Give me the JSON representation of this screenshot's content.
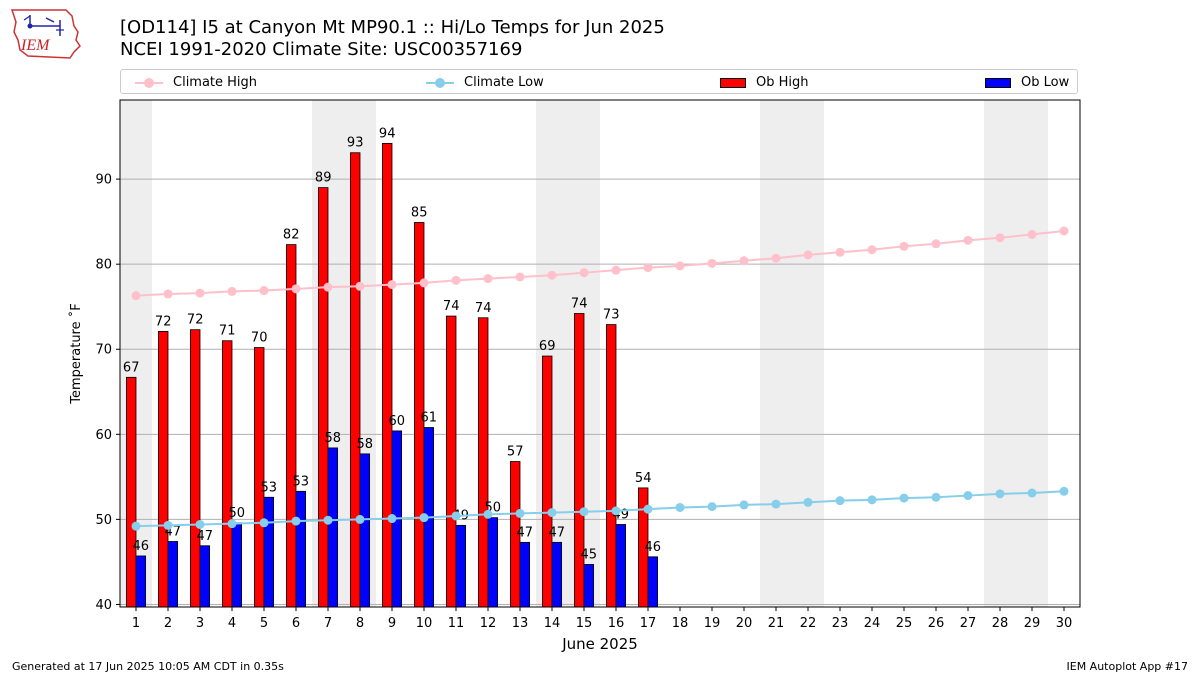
{
  "logo": {
    "text": "IEM"
  },
  "header": {
    "title_line1": "[OD114] I5 at Canyon Mt MP90.1  :: Hi/Lo Temps for Jun 2025",
    "title_line2": "NCEI 1991-2020 Climate Site: USC00357169"
  },
  "legend": {
    "climate_high": "Climate High",
    "climate_low": "Climate Low",
    "ob_high": "Ob High",
    "ob_low": "Ob Low"
  },
  "colors": {
    "climate_high": "#ffc0cb",
    "climate_low": "#87ceeb",
    "ob_high": "#ff0000",
    "ob_low": "#0000ff",
    "weekend_shade": "#eeeeee",
    "grid": "#b0b0b0"
  },
  "chart_data": {
    "type": "bar",
    "xlabel": "June 2025",
    "ylabel": "Temperature ˚F",
    "x": [
      1,
      2,
      3,
      4,
      5,
      6,
      7,
      8,
      9,
      10,
      11,
      12,
      13,
      14,
      15,
      16,
      17,
      18,
      19,
      20,
      21,
      22,
      23,
      24,
      25,
      26,
      27,
      28,
      29,
      30
    ],
    "xlim": [
      0.5,
      30.5
    ],
    "ylim": [
      39.7,
      99.3
    ],
    "yticks": [
      40,
      50,
      60,
      70,
      80,
      90
    ],
    "grid": "horizontal",
    "legend_position": "top",
    "shaded_days": [
      1,
      7,
      8,
      14,
      15,
      21,
      22,
      28,
      29
    ],
    "bars": [
      {
        "name": "Ob High",
        "values": [
          66.7,
          72.1,
          72.3,
          71.0,
          70.2,
          82.3,
          89.0,
          93.1,
          94.2,
          84.9,
          73.9,
          73.7,
          56.8,
          69.2,
          74.2,
          72.9,
          53.7
        ]
      },
      {
        "name": "Ob Low",
        "values": [
          45.7,
          47.4,
          46.9,
          49.6,
          52.6,
          53.3,
          58.4,
          57.7,
          60.4,
          60.8,
          49.3,
          50.2,
          47.3,
          47.3,
          44.7,
          49.4,
          45.6
        ]
      }
    ],
    "bar_labels": [
      {
        "name": "Ob High",
        "labels": [
          "67",
          "72",
          "72",
          "71",
          "70",
          "82",
          "89",
          "93",
          "94",
          "85",
          "74",
          "74",
          "57",
          "69",
          "74",
          "73",
          "54"
        ]
      },
      {
        "name": "Ob Low",
        "labels": [
          "46",
          "47",
          "47",
          "50",
          "53",
          "53",
          "58",
          "58",
          "60",
          "61",
          "49",
          "50",
          "47",
          "47",
          "45",
          "49",
          "46"
        ]
      }
    ],
    "series": [
      {
        "name": "Climate High",
        "values": [
          76.3,
          76.5,
          76.6,
          76.8,
          76.9,
          77.1,
          77.3,
          77.4,
          77.6,
          77.8,
          78.1,
          78.3,
          78.5,
          78.7,
          79.0,
          79.3,
          79.6,
          79.8,
          80.1,
          80.4,
          80.7,
          81.1,
          81.4,
          81.7,
          82.1,
          82.4,
          82.8,
          83.1,
          83.5,
          83.9
        ]
      },
      {
        "name": "Climate Low",
        "values": [
          49.2,
          49.3,
          49.4,
          49.5,
          49.6,
          49.8,
          49.9,
          50.0,
          50.1,
          50.2,
          50.4,
          50.6,
          50.7,
          50.8,
          50.9,
          51.0,
          51.2,
          51.4,
          51.5,
          51.7,
          51.8,
          52.0,
          52.2,
          52.3,
          52.5,
          52.6,
          52.8,
          53.0,
          53.1,
          53.3
        ]
      }
    ]
  },
  "footer": {
    "left": "Generated at 17 Jun 2025 10:05 AM CDT in 0.35s",
    "right": "IEM Autoplot App #17"
  }
}
